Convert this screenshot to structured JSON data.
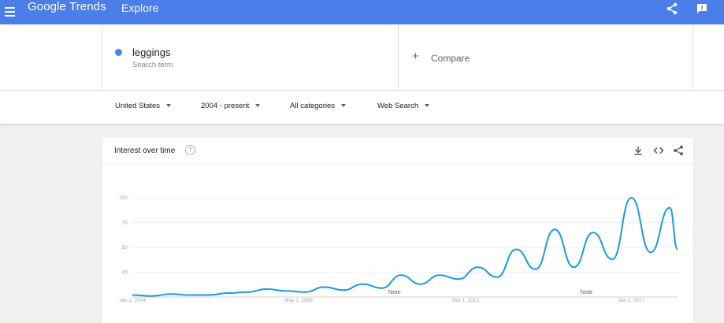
{
  "appbar": {
    "brand_google": "Google",
    "brand_trends": "Trends",
    "page_name": "Explore",
    "icons": [
      "menu-icon",
      "share-icon",
      "feedback-icon"
    ]
  },
  "search": {
    "term": "leggings",
    "term_type": "Search term",
    "term_color": "#4285f4",
    "compare_label": "Compare"
  },
  "filters": [
    {
      "label": "United States"
    },
    {
      "label": "2004 - present"
    },
    {
      "label": "All categories"
    },
    {
      "label": "Web Search"
    }
  ],
  "interest_card": {
    "title": "Interest over time",
    "help": "?",
    "icons": [
      "download-icon",
      "embed-icon",
      "share-icon"
    ]
  },
  "chart_data": {
    "type": "line",
    "xlabel": "",
    "ylabel": "",
    "ylim": [
      0,
      100
    ],
    "y_ticks": [
      25,
      50,
      75,
      100
    ],
    "x_ticks": [
      "Jan 1, 2004",
      "May 1, 2008",
      "Sep 1, 2012",
      "Jan 1, 2017"
    ],
    "grid": true,
    "line_color": "#1a9ae6",
    "notes": [
      {
        "label": "Note",
        "x": "2010-10"
      },
      {
        "label": "Note",
        "x": "2016-01"
      }
    ],
    "series": [
      {
        "x": [
          2004.0,
          2004.5,
          2005.0,
          2005.5,
          2006.0,
          2006.5,
          2007.0,
          2007.5,
          2008.0,
          2008.5,
          2009.0,
          2009.5,
          2010.0,
          2010.5,
          2011.0,
          2011.5,
          2012.0,
          2012.5,
          2013.0,
          2013.5,
          2014.0,
          2014.5,
          2015.0,
          2015.5,
          2016.0,
          2016.5,
          2017.0,
          2017.5,
          2018.0,
          2018.2
        ],
        "values": [
          2,
          1,
          3,
          2,
          2,
          4,
          5,
          8,
          6,
          5,
          10,
          7,
          13,
          9,
          22,
          13,
          22,
          18,
          30,
          20,
          48,
          28,
          68,
          30,
          65,
          38,
          100,
          45,
          90,
          48
        ]
      }
    ]
  }
}
